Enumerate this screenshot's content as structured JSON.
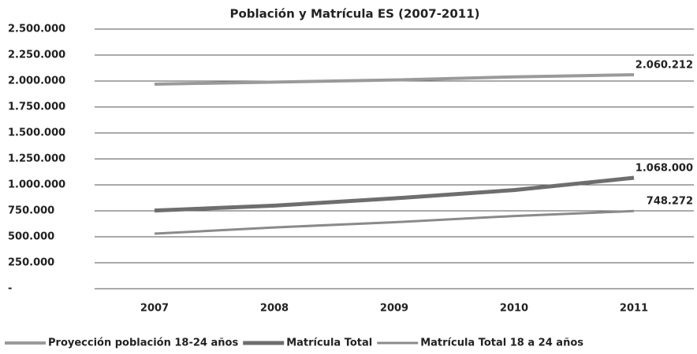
{
  "chart_data": {
    "type": "line",
    "title": "Población y Matrícula ES (2007-2011)",
    "categories": [
      "2007",
      "2008",
      "2009",
      "2010",
      "2011"
    ],
    "series": [
      {
        "name": "Proyección población 18-24 años",
        "color": "#9a9a9a",
        "values": [
          1970000,
          1990000,
          2010000,
          2040000,
          2060212
        ],
        "value_labels": [
          null,
          null,
          null,
          null,
          "2.060.212"
        ]
      },
      {
        "name": "Matrícula Total",
        "color": "#6e6e6e",
        "values": [
          753000,
          800000,
          870000,
          950000,
          1068000
        ],
        "value_labels": [
          null,
          null,
          null,
          null,
          "1.068.000"
        ]
      },
      {
        "name": "Matrícula Total 18 a 24 años",
        "color": "#8a8a8a",
        "values": [
          530000,
          590000,
          640000,
          700000,
          748272
        ],
        "value_labels": [
          null,
          null,
          null,
          null,
          "748.272"
        ]
      }
    ],
    "ylim": [
      0,
      2500000
    ],
    "yticks": [
      {
        "value": 0,
        "label": "-"
      },
      {
        "value": 250000,
        "label": "250.000"
      },
      {
        "value": 500000,
        "label": "500.000"
      },
      {
        "value": 750000,
        "label": "750.000"
      },
      {
        "value": 1000000,
        "label": "1.000.000"
      },
      {
        "value": 1250000,
        "label": "1.250.000"
      },
      {
        "value": 1500000,
        "label": "1.500.000"
      },
      {
        "value": 1750000,
        "label": "1.750.000"
      },
      {
        "value": 2000000,
        "label": "2.000.000"
      },
      {
        "value": 2250000,
        "label": "2.250.000"
      },
      {
        "value": 2500000,
        "label": "2.500.000"
      }
    ],
    "grid": true,
    "legend": "bottom"
  }
}
